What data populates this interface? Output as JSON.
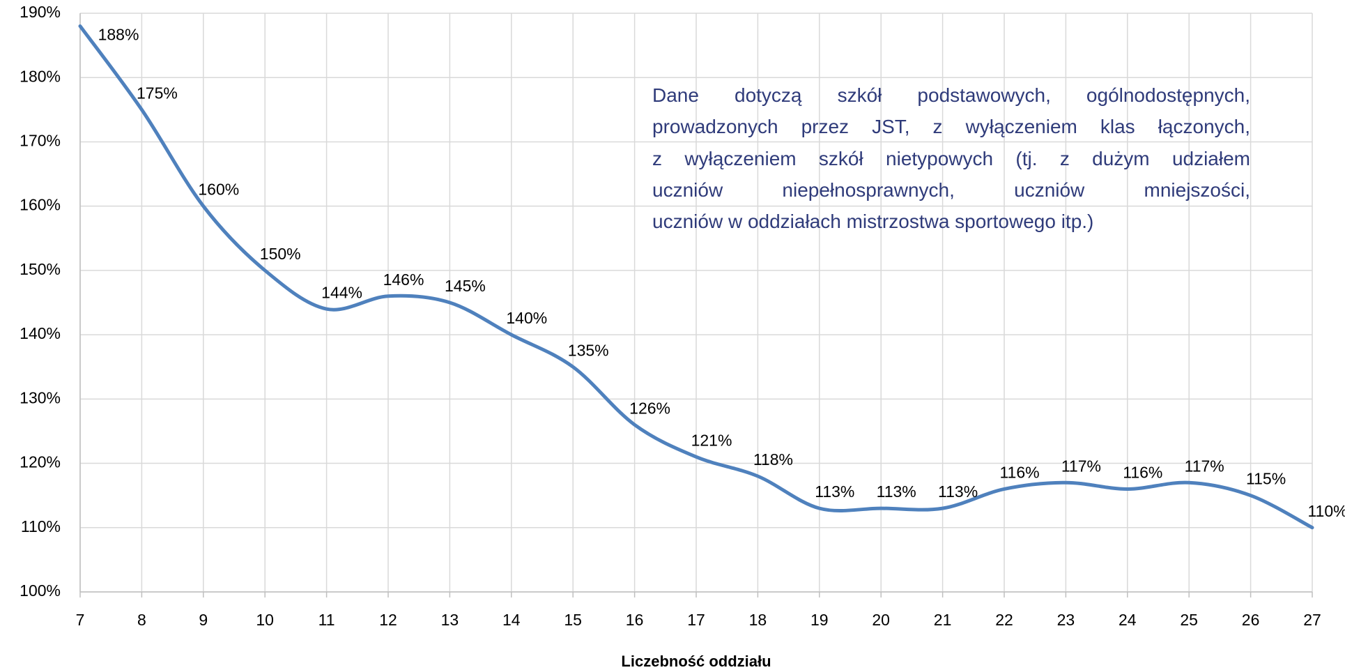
{
  "chart_data": {
    "type": "line",
    "x": [
      7,
      8,
      9,
      10,
      11,
      12,
      13,
      14,
      15,
      16,
      17,
      18,
      19,
      20,
      21,
      22,
      23,
      24,
      25,
      26,
      27
    ],
    "series": [
      {
        "color": "#4f81bd",
        "values": [
          188,
          175,
          160,
          150,
          144,
          146,
          145,
          140,
          135,
          126,
          121,
          118,
          113,
          113,
          113,
          116,
          117,
          116,
          117,
          115,
          110
        ],
        "value_labels": [
          "188%",
          "175%",
          "160%",
          "150%",
          "144%",
          "146%",
          "145%",
          "140%",
          "135%",
          "126%",
          "121%",
          "118%",
          "113%",
          "113%",
          "113%",
          "116%",
          "117%",
          "116%",
          "117%",
          "115%",
          "110%"
        ]
      }
    ],
    "xlim": [
      7,
      27
    ],
    "xticks": [
      7,
      8,
      9,
      10,
      11,
      12,
      13,
      14,
      15,
      16,
      17,
      18,
      19,
      20,
      21,
      22,
      23,
      24,
      25,
      26,
      27
    ],
    "ylim": [
      100,
      190
    ],
    "yticks": [
      {
        "value": 100,
        "label": "100%"
      },
      {
        "value": 110,
        "label": "110%"
      },
      {
        "value": 120,
        "label": "120%"
      },
      {
        "value": 130,
        "label": "130%"
      },
      {
        "value": 140,
        "label": "140%"
      },
      {
        "value": 150,
        "label": "150%"
      },
      {
        "value": 160,
        "label": "160%"
      },
      {
        "value": 170,
        "label": "170%"
      },
      {
        "value": 180,
        "label": "180%"
      },
      {
        "value": 190,
        "label": "190%"
      }
    ],
    "grid": true,
    "smooth": true,
    "xlabel": "Liczebność oddziału",
    "annotation": [
      "Dane dotyczą szkół podstawowych, ogólnodostępnych,",
      "prowadzonych przez JST, z wyłączeniem klas łączonych,",
      "z wyłączeniem szkół nietypowych (tj. z  dużym udziałem",
      "uczniów niepełnosprawnych, uczniów mniejszości,",
      "uczniów w oddziałach mistrzostwa sportowego itp.)"
    ]
  }
}
